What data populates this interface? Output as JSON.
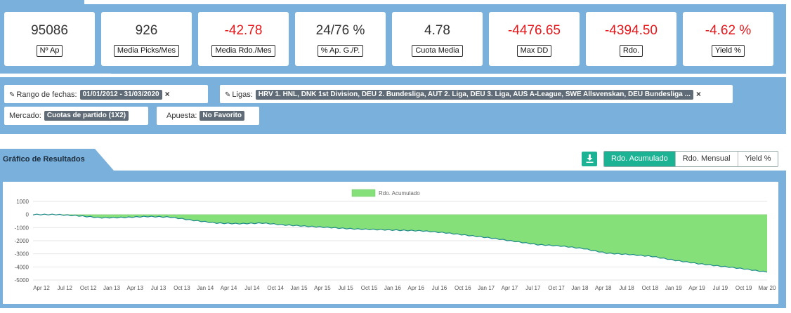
{
  "stats": [
    {
      "value": "95086",
      "label": "Nº Ap",
      "negative": false
    },
    {
      "value": "926",
      "label": "Media Picks/Mes",
      "negative": false
    },
    {
      "value": "-42.78",
      "label": "Media Rdo./Mes",
      "negative": true
    },
    {
      "value": "24/76 %",
      "label": "% Ap. G./P.",
      "negative": false
    },
    {
      "value": "4.78",
      "label": "Cuota Media",
      "negative": false
    },
    {
      "value": "-4476.65",
      "label": "Max DD",
      "negative": true
    },
    {
      "value": "-4394.50",
      "label": "Rdo.",
      "negative": true
    },
    {
      "value": "-4.62 %",
      "label": "Yield %",
      "negative": true
    }
  ],
  "filters": {
    "date_range": {
      "label": "Rango de fechas:",
      "value": "01/01/2012 - 31/03/2020",
      "icon": "pencil-icon"
    },
    "leagues": {
      "label": "Ligas:",
      "value": "HRV 1. HNL, DNK 1st Division, DEU 2. Bundesliga, AUT 2. Liga, DEU 3. Liga, AUS A-League, SWE Allsvenskan, DEU Bundesliga ...",
      "icon": "pencil-icon"
    },
    "market": {
      "label": "Mercado:",
      "value": "Cuotas de partido (1X2)"
    },
    "bet": {
      "label": "Apuesta:",
      "value": "No Favorito"
    },
    "close_glyph": "×"
  },
  "chart_section": {
    "title": "Gráfico de Resultados",
    "download_icon": "download-icon",
    "toggles": [
      "Rdo. Acumulado",
      "Rdo. Mensual",
      "Yield %"
    ],
    "active_toggle": 0
  },
  "colors": {
    "panel": "#7ab0dc",
    "accent": "#1bb394",
    "negative": "#e4161a",
    "area_fill": "#86e07a",
    "line": "#1f8b8a"
  },
  "chart_data": {
    "type": "area",
    "legend": [
      "Rdo. Acumulado"
    ],
    "legend_position": "top-center",
    "grid": true,
    "ylim": [
      -5000,
      1000
    ],
    "yticks": [
      1000,
      0,
      -1000,
      -2000,
      -3000,
      -4000,
      -5000
    ],
    "xticks": [
      "Apr 12",
      "Jul 12",
      "Oct 12",
      "Jan 13",
      "Apr 13",
      "Jul 13",
      "Oct 13",
      "Jan 14",
      "Apr 14",
      "Jul 14",
      "Oct 14",
      "Jan 15",
      "Apr 15",
      "Jul 15",
      "Oct 15",
      "Jan 16",
      "Apr 16",
      "Jul 16",
      "Oct 16",
      "Jan 17",
      "Apr 17",
      "Jul 17",
      "Oct 17",
      "Jan 18",
      "Apr 18",
      "Jul 18",
      "Oct 18",
      "Jan 19",
      "Apr 19",
      "Jul 19",
      "Oct 19",
      "Mar 20"
    ],
    "series": [
      {
        "name": "Rdo. Acumulado",
        "x": [
          "Jan 12",
          "Apr 12",
          "Jul 12",
          "Oct 12",
          "Jan 13",
          "Apr 13",
          "Jul 13",
          "Oct 13",
          "Jan 14",
          "Apr 14",
          "Jul 14",
          "Oct 14",
          "Jan 15",
          "Apr 15",
          "Jul 15",
          "Oct 15",
          "Jan 16",
          "Apr 16",
          "Jul 16",
          "Oct 16",
          "Jan 17",
          "Apr 17",
          "Jul 17",
          "Oct 17",
          "Jan 18",
          "Apr 18",
          "Jul 18",
          "Oct 18",
          "Jan 19",
          "Apr 19",
          "Jul 19",
          "Oct 19",
          "Mar 20"
        ],
        "values": [
          0,
          0,
          -100,
          -250,
          -220,
          -150,
          -200,
          -450,
          -650,
          -700,
          -650,
          -800,
          -900,
          -1000,
          -1100,
          -1150,
          -1200,
          -1250,
          -1400,
          -1600,
          -1800,
          -2050,
          -2300,
          -2400,
          -2600,
          -2950,
          -3050,
          -3200,
          -3500,
          -3750,
          -3950,
          -4150,
          -4400
        ]
      }
    ]
  }
}
